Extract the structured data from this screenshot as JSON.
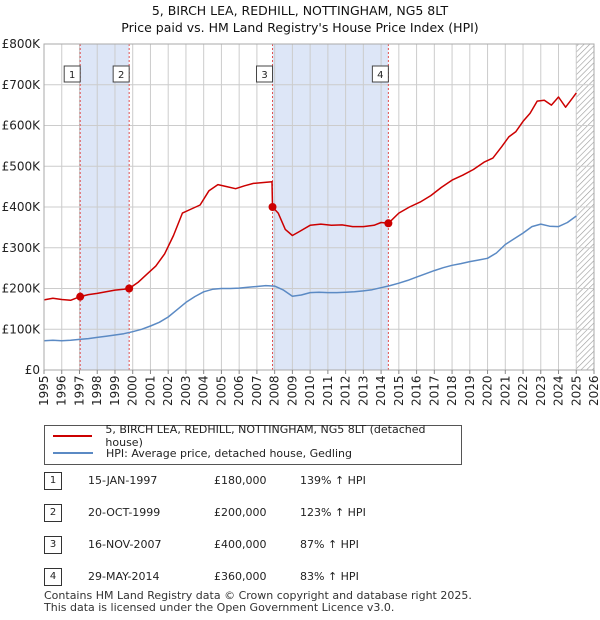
{
  "title_line1": "5, BIRCH LEA, REDHILL, NOTTINGHAM, NG5 8LT",
  "title_line2": "Price paid vs. HM Land Registry's House Price Index (HPI)",
  "colors": {
    "property": "#cc0000",
    "hpi": "#5b8ac4",
    "shade": "#dde6f7",
    "grid": "#cccccc",
    "marker_line": "#e05050"
  },
  "chart_data": {
    "type": "line",
    "xlim": [
      1995,
      2026
    ],
    "ylim": [
      0,
      800000
    ],
    "x_ticks": [
      "1995",
      "1996",
      "1997",
      "1998",
      "1999",
      "2000",
      "2001",
      "2002",
      "2003",
      "2004",
      "2005",
      "2006",
      "2007",
      "2008",
      "2009",
      "2010",
      "2011",
      "2012",
      "2013",
      "2014",
      "2015",
      "2016",
      "2017",
      "2018",
      "2019",
      "2020",
      "2021",
      "2022",
      "2023",
      "2024",
      "2025",
      "2026"
    ],
    "y_ticks": [
      {
        "value": 0,
        "label": "£0"
      },
      {
        "value": 100000,
        "label": "£100K"
      },
      {
        "value": 200000,
        "label": "£200K"
      },
      {
        "value": 300000,
        "label": "£300K"
      },
      {
        "value": 400000,
        "label": "£400K"
      },
      {
        "value": 500000,
        "label": "£500K"
      },
      {
        "value": 600000,
        "label": "£600K"
      },
      {
        "value": 700000,
        "label": "£700K"
      },
      {
        "value": 800000,
        "label": "£800K"
      }
    ],
    "shaded_ranges": [
      [
        1997.04,
        1999.8
      ],
      [
        2007.88,
        2014.41
      ]
    ],
    "hatched_from": 2025.0,
    "series": [
      {
        "name": "5, BIRCH LEA, REDHILL, NOTTINGHAM, NG5 8LT (detached house)",
        "x": [
          1995.0,
          1995.5,
          1996.0,
          1996.5,
          1997.04,
          1997.5,
          1998.0,
          1998.5,
          1999.0,
          1999.5,
          1999.8,
          2000.3,
          2000.8,
          2001.3,
          2001.8,
          2002.3,
          2002.8,
          2003.3,
          2003.8,
          2004.3,
          2004.8,
          2005.3,
          2005.8,
          2006.3,
          2006.8,
          2007.3,
          2007.85,
          2007.88,
          2008.2,
          2008.6,
          2009.0,
          2009.4,
          2010.0,
          2010.6,
          2011.2,
          2011.8,
          2012.4,
          2013.0,
          2013.6,
          2014.0,
          2014.41,
          2015.0,
          2015.6,
          2016.2,
          2016.8,
          2017.4,
          2018.0,
          2018.6,
          2019.2,
          2019.8,
          2020.3,
          2020.8,
          2021.2,
          2021.6,
          2022.0,
          2022.4,
          2022.8,
          2023.2,
          2023.6,
          2024.0,
          2024.4,
          2024.8,
          2025.0
        ],
        "y": [
          172000,
          176000,
          173000,
          171000,
          180000,
          185000,
          188000,
          192000,
          196000,
          198000,
          200000,
          215000,
          235000,
          255000,
          285000,
          330000,
          385000,
          395000,
          405000,
          440000,
          455000,
          450000,
          445000,
          452000,
          458000,
          460000,
          462000,
          400000,
          385000,
          345000,
          330000,
          340000,
          355000,
          358000,
          355000,
          356000,
          352000,
          352000,
          355000,
          362000,
          360000,
          385000,
          400000,
          412000,
          428000,
          448000,
          466000,
          478000,
          492000,
          510000,
          520000,
          548000,
          572000,
          585000,
          610000,
          630000,
          660000,
          662000,
          650000,
          670000,
          645000,
          668000,
          680000
        ]
      },
      {
        "name": "HPI: Average price, detached house, Gedling",
        "x": [
          1995.0,
          1995.5,
          1996.0,
          1996.5,
          1997.0,
          1997.5,
          1998.0,
          1998.5,
          1999.0,
          1999.5,
          2000.0,
          2000.5,
          2001.0,
          2001.5,
          2002.0,
          2002.5,
          2003.0,
          2003.5,
          2004.0,
          2004.5,
          2005.0,
          2005.5,
          2006.0,
          2006.5,
          2007.0,
          2007.5,
          2008.0,
          2008.5,
          2009.0,
          2009.5,
          2010.0,
          2010.5,
          2011.0,
          2011.5,
          2012.0,
          2012.5,
          2013.0,
          2013.5,
          2014.0,
          2014.5,
          2015.0,
          2015.5,
          2016.0,
          2016.5,
          2017.0,
          2017.5,
          2018.0,
          2018.5,
          2019.0,
          2019.5,
          2020.0,
          2020.5,
          2021.0,
          2021.5,
          2022.0,
          2022.5,
          2023.0,
          2023.5,
          2024.0,
          2024.5,
          2025.0
        ],
        "y": [
          72000,
          73000,
          72000,
          73000,
          75000,
          77000,
          80000,
          83000,
          86000,
          89000,
          94000,
          100000,
          108000,
          117000,
          130000,
          148000,
          166000,
          180000,
          192000,
          198000,
          200000,
          200000,
          201000,
          203000,
          205000,
          207000,
          206000,
          196000,
          181000,
          184000,
          190000,
          191000,
          190000,
          190000,
          191000,
          192000,
          194000,
          197000,
          202000,
          207000,
          213000,
          220000,
          228000,
          236000,
          244000,
          251000,
          257000,
          261000,
          266000,
          270000,
          274000,
          287000,
          308000,
          322000,
          336000,
          352000,
          358000,
          353000,
          352000,
          362000,
          378000
        ]
      }
    ],
    "sales": [
      {
        "id": "1",
        "x": 1997.04,
        "y": 180000
      },
      {
        "id": "2",
        "x": 1999.8,
        "y": 200000
      },
      {
        "id": "3",
        "x": 2007.88,
        "y": 400000
      },
      {
        "id": "4",
        "x": 2014.41,
        "y": 360000
      }
    ]
  },
  "legend": {
    "property": "5, BIRCH LEA, REDHILL, NOTTINGHAM, NG5 8LT (detached house)",
    "hpi": "HPI: Average price, detached house, Gedling"
  },
  "transactions": [
    {
      "num": "1",
      "date": "15-JAN-1997",
      "price": "£180,000",
      "hpi": "139% ↑ HPI"
    },
    {
      "num": "2",
      "date": "20-OCT-1999",
      "price": "£200,000",
      "hpi": "123% ↑ HPI"
    },
    {
      "num": "3",
      "date": "16-NOV-2007",
      "price": "£400,000",
      "hpi": "87% ↑ HPI"
    },
    {
      "num": "4",
      "date": "29-MAY-2014",
      "price": "£360,000",
      "hpi": "83% ↑ HPI"
    }
  ],
  "footer_line1": "Contains HM Land Registry data © Crown copyright and database right 2025.",
  "footer_line2": "This data is licensed under the Open Government Licence v3.0."
}
